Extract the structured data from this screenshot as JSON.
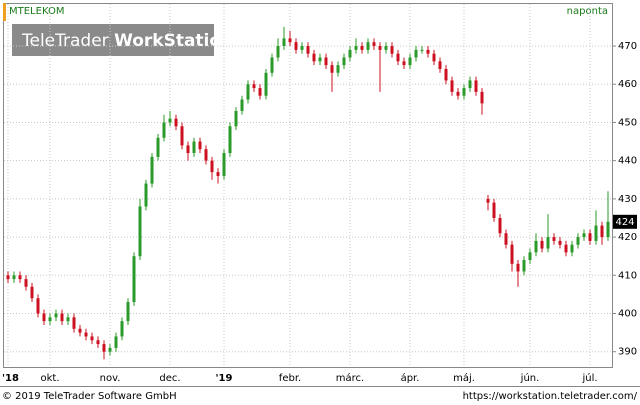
{
  "chart_data": {
    "type": "candlestick",
    "title": "MTELEKOM",
    "period": "naponta",
    "watermark": [
      "TeleTrader ",
      "WorkStation"
    ],
    "footer_left": "© 2019 TeleTrader Software GmbH",
    "footer_right": "https://workstation.teletrader.com/",
    "categories": [
      "'18",
      null,
      null,
      null,
      null,
      null,
      null,
      "okt.",
      null,
      null,
      null,
      null,
      null,
      null,
      null,
      null,
      null,
      "nov.",
      null,
      null,
      null,
      null,
      null,
      null,
      null,
      null,
      null,
      "dec.",
      null,
      null,
      null,
      null,
      null,
      null,
      null,
      null,
      "'19",
      null,
      null,
      null,
      null,
      null,
      null,
      null,
      null,
      null,
      null,
      "febr.",
      null,
      null,
      null,
      null,
      null,
      null,
      null,
      null,
      null,
      "márc.",
      null,
      null,
      null,
      null,
      null,
      null,
      null,
      null,
      null,
      "ápr.",
      null,
      null,
      null,
      null,
      null,
      null,
      null,
      null,
      "máj.",
      null,
      null,
      null,
      null,
      null,
      null,
      null,
      null,
      null,
      null,
      "jún.",
      null,
      null,
      null,
      null,
      null,
      null,
      null,
      null,
      null,
      "júl.",
      null,
      null,
      null
    ],
    "open": [
      410,
      409,
      410,
      409,
      407,
      404,
      400,
      398,
      399,
      400,
      398,
      399,
      396,
      395,
      394,
      393,
      392,
      390,
      391,
      394,
      398,
      403,
      415,
      428,
      434,
      441,
      446,
      450,
      451,
      449,
      444,
      442,
      445,
      443,
      440,
      437,
      436,
      442,
      449,
      453,
      456,
      460,
      459,
      457,
      463,
      467,
      470,
      472,
      471,
      469,
      470,
      468,
      466,
      467,
      465,
      463,
      465,
      467,
      469,
      470,
      469,
      471,
      470,
      469,
      470,
      468,
      466,
      465,
      467,
      469,
      469,
      468,
      466,
      464,
      461,
      458,
      457,
      459,
      461,
      458,
      430,
      429,
      425,
      421,
      418,
      413,
      411,
      414,
      416,
      419,
      417,
      420,
      419,
      418,
      416,
      418,
      420,
      421,
      419,
      423,
      420
    ],
    "high": [
      411,
      411,
      411,
      410,
      408,
      405,
      401,
      400,
      401,
      401,
      400,
      400,
      397,
      396,
      395,
      394,
      393,
      392,
      395,
      399,
      404,
      416,
      430,
      435,
      442,
      447,
      452,
      453,
      452,
      450,
      445,
      446,
      446,
      444,
      441,
      438,
      443,
      450,
      454,
      457,
      461,
      461,
      460,
      464,
      468,
      472,
      475,
      474,
      472,
      471,
      471,
      469,
      468,
      468,
      466,
      466,
      468,
      470,
      472,
      471,
      472,
      472,
      471,
      471,
      471,
      469,
      467,
      468,
      470,
      470,
      470,
      469,
      467,
      465,
      462,
      459,
      460,
      462,
      462,
      459,
      431,
      430,
      426,
      422,
      419,
      414,
      415,
      417,
      421,
      420,
      426,
      421,
      420,
      419,
      419,
      421,
      422,
      422,
      427,
      424,
      432
    ],
    "low": [
      408,
      408,
      408,
      406,
      403,
      399,
      397,
      397,
      398,
      397,
      397,
      395,
      394,
      393,
      392,
      391,
      388,
      389,
      390,
      393,
      397,
      402,
      414,
      427,
      433,
      440,
      445,
      449,
      448,
      443,
      440,
      441,
      442,
      439,
      435,
      434,
      435,
      441,
      448,
      452,
      455,
      458,
      456,
      456,
      462,
      466,
      469,
      470,
      468,
      468,
      467,
      465,
      465,
      464,
      458,
      462,
      464,
      466,
      468,
      468,
      468,
      469,
      458,
      468,
      467,
      465,
      464,
      464,
      466,
      468,
      467,
      465,
      463,
      460,
      457,
      456,
      456,
      458,
      457,
      452,
      427,
      424,
      420,
      417,
      411,
      407,
      410,
      413,
      415,
      416,
      416,
      418,
      417,
      415,
      415,
      417,
      419,
      418,
      418,
      418,
      419
    ],
    "close": [
      409,
      410,
      409,
      407,
      404,
      400,
      398,
      399,
      400,
      398,
      399,
      396,
      395,
      394,
      393,
      392,
      390,
      391,
      394,
      398,
      403,
      415,
      428,
      434,
      441,
      446,
      450,
      451,
      449,
      444,
      442,
      445,
      443,
      440,
      437,
      436,
      442,
      449,
      453,
      456,
      460,
      459,
      457,
      463,
      467,
      470,
      472,
      471,
      469,
      470,
      468,
      466,
      467,
      465,
      463,
      465,
      467,
      469,
      470,
      469,
      471,
      470,
      469,
      470,
      468,
      466,
      465,
      467,
      469,
      469,
      468,
      466,
      464,
      461,
      458,
      457,
      459,
      461,
      458,
      455,
      429,
      425,
      421,
      418,
      413,
      411,
      414,
      416,
      419,
      417,
      420,
      419,
      418,
      416,
      418,
      420,
      421,
      419,
      423,
      420,
      424
    ],
    "up_color": "#2a9a2a",
    "down_color": "#cc1020",
    "ylim": [
      386,
      481
    ],
    "yticks": [
      390,
      400,
      410,
      420,
      430,
      440,
      450,
      460,
      470
    ],
    "grid": true
  }
}
